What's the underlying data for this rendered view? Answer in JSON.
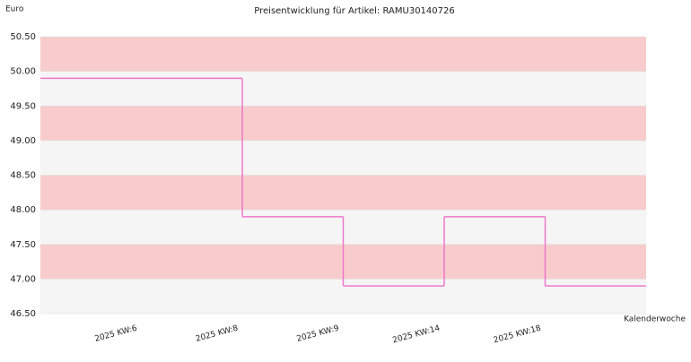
{
  "chart_data": {
    "type": "step",
    "title": "Preisentwicklung für Artikel: RAMU30140726",
    "y_label": "Euro",
    "x_label": "Kalenderwoche",
    "categories": [
      "2025 KW:6",
      "2025 KW:8",
      "2025 KW:9",
      "2025 KW:14",
      "2025 KW:18"
    ],
    "values": [
      49.9,
      47.9,
      46.9,
      47.9,
      46.9
    ],
    "color": "#ee77cc",
    "ylim": [
      46.5,
      50.5
    ],
    "yticks": [
      {
        "value": 46.5,
        "label": "46.50"
      },
      {
        "value": 47,
        "label": "47.00"
      },
      {
        "value": 47.5,
        "label": "47.50"
      },
      {
        "value": 48,
        "label": "48.00"
      },
      {
        "value": 48.5,
        "label": "48.50"
      },
      {
        "value": 49,
        "label": "49.00"
      },
      {
        "value": 49.5,
        "label": "49.50"
      },
      {
        "value": 50,
        "label": "50.00"
      },
      {
        "value": 50.5,
        "label": "50.50"
      }
    ],
    "band_colors": [
      "#f5f5f5",
      "#f8cccc"
    ]
  }
}
